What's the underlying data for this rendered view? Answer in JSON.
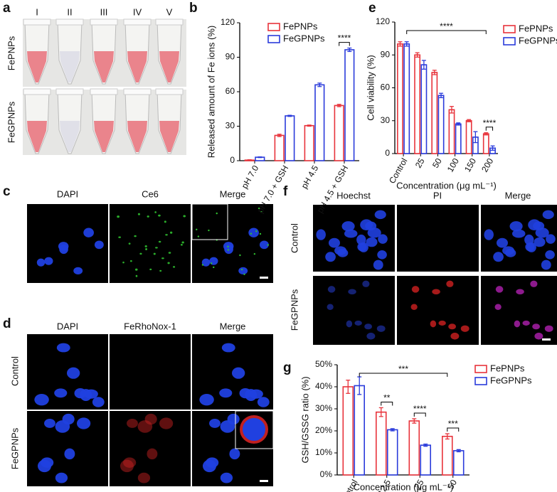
{
  "figure": {
    "a": {
      "label": "a",
      "lanes": [
        "I",
        "II",
        "III",
        "IV",
        "V"
      ],
      "rows": [
        "FePNPs",
        "FeGPNPs"
      ]
    },
    "c": {
      "label": "c",
      "columns": [
        "DAPI",
        "Ce6",
        "Merge"
      ]
    },
    "d": {
      "label": "d",
      "columns": [
        "DAPI",
        "FeRhoNox-1",
        "Merge"
      ],
      "rows": [
        "Control",
        "FeGPNPs"
      ]
    },
    "f": {
      "label": "f",
      "columns": [
        "Hoechst",
        "PI",
        "Merge"
      ],
      "rows": [
        "Control",
        "FeGPNPs"
      ]
    }
  },
  "chart_data": [
    {
      "type": "bar",
      "panel_label": "b",
      "ylabel": "Released amount of Fe ions (%)",
      "categories": [
        "pH 7.0",
        "pH 7.0 + GSH",
        "pH 4.5",
        "pH 4.5 + GSH"
      ],
      "series": [
        {
          "name": "FePNPs",
          "color": "#e8333b",
          "values": [
            0.5,
            22,
            30.5,
            48
          ],
          "errors": [
            0.3,
            1,
            0.5,
            1
          ]
        },
        {
          "name": "FeGPNPs",
          "color": "#2a3bdb",
          "values": [
            3,
            39,
            66,
            96.5
          ],
          "errors": [
            0.3,
            0.5,
            1.5,
            1.5
          ]
        }
      ],
      "ylim": [
        0,
        120
      ],
      "yticks": [
        0,
        30,
        60,
        90,
        120
      ],
      "legend": "upper left",
      "annotations": [
        "****"
      ]
    },
    {
      "type": "bar",
      "panel_label": "e",
      "ylabel": "Cell viability (%)",
      "xlabel": "Concentration (μg mL⁻¹)",
      "categories": [
        "Control",
        "25",
        "50",
        "100",
        "150",
        "200"
      ],
      "series": [
        {
          "name": "FePNPs",
          "color": "#e8333b",
          "values": [
            100,
            90,
            74,
            40,
            30,
            18
          ],
          "errors": [
            2,
            2,
            2,
            3,
            1,
            1
          ]
        },
        {
          "name": "FeGPNPs",
          "color": "#2a3bdb",
          "values": [
            100,
            81,
            53,
            27,
            15,
            5
          ],
          "errors": [
            2,
            4,
            2,
            1,
            5,
            2
          ]
        }
      ],
      "ylim": [
        0,
        120
      ],
      "yticks": [
        0,
        30,
        60,
        90,
        120
      ],
      "legend": "right",
      "annotations": [
        "****",
        "****"
      ]
    },
    {
      "type": "bar",
      "panel_label": "g",
      "ylabel": "GSH/GSSG ratio (%)",
      "xlabel": "Concentration (μg mL⁻¹)",
      "categories": [
        "Control",
        "12.5",
        "25",
        "50"
      ],
      "series": [
        {
          "name": "FePNPs",
          "color": "#e8333b",
          "values": [
            40,
            28.5,
            24.5,
            17.5
          ],
          "errors": [
            3,
            2,
            1,
            1.2
          ]
        },
        {
          "name": "FeGPNPs",
          "color": "#2a3bdb",
          "values": [
            40.5,
            20.5,
            13.5,
            11
          ],
          "errors": [
            4,
            0.5,
            0.5,
            0.5
          ]
        }
      ],
      "ylim": [
        0,
        50
      ],
      "yticks": [
        {
          "value": 0,
          "label": "0%"
        },
        {
          "value": 10,
          "label": "10%"
        },
        {
          "value": 20,
          "label": "20%"
        },
        {
          "value": 30,
          "label": "30%"
        },
        {
          "value": 40,
          "label": "40%"
        },
        {
          "value": 50,
          "label": "50%"
        }
      ],
      "legend": "upper right",
      "annotations": [
        "**",
        "****",
        "***",
        "***"
      ]
    }
  ]
}
